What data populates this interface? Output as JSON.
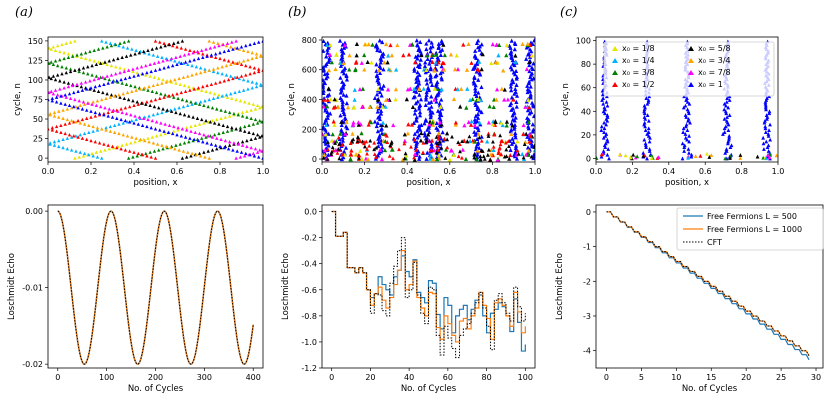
{
  "panel_labels": [
    "(a)",
    "(b)",
    "(c)"
  ],
  "legend_bottom_right": {
    "entries": [
      {
        "label": "Free Fermions L = 500",
        "color": "#1f77b4",
        "style": "solid"
      },
      {
        "label": "Free Fermions L = 1000",
        "color": "#ff7f0e",
        "style": "solid"
      },
      {
        "label": "CFT",
        "color": "#000000",
        "style": "dotted"
      }
    ]
  },
  "legend_top_right": {
    "entries": [
      {
        "label": "x₀ = 1/8",
        "color": "#e6e600"
      },
      {
        "label": "x₀ = 1/4",
        "color": "#00b3ff"
      },
      {
        "label": "x₀ = 3/8",
        "color": "#008000"
      },
      {
        "label": "x₀ = 1/2",
        "color": "#ff0000"
      },
      {
        "label": "x₀ = 5/8",
        "color": "#000000"
      },
      {
        "label": "x₀ = 3/4",
        "color": "#ffa500"
      },
      {
        "label": "x₀ = 7/8",
        "color": "#ff00ff"
      },
      {
        "label": "x₀ = 1",
        "color": "#0000ff"
      }
    ]
  },
  "chart_data": [
    {
      "id": "top-a",
      "type": "scatter",
      "title": "",
      "xlabel": "position, x",
      "ylabel": "cycle, n",
      "xlim": [
        0,
        1
      ],
      "ylim": [
        -5,
        155
      ],
      "xticks": [
        "0.0",
        "0.2",
        "0.4",
        "0.6",
        "0.8",
        "1.0"
      ],
      "xtick_values": [
        0,
        0.2,
        0.4,
        0.6,
        0.8,
        1.0
      ],
      "yticks": [
        "0",
        "25",
        "50",
        "75",
        "100",
        "125",
        "150"
      ],
      "ytick_values": [
        0,
        25,
        50,
        75,
        100,
        125,
        150
      ],
      "series_colors": [
        "#e6e600",
        "#00b3ff",
        "#008000",
        "#ff0000",
        "#000000",
        "#ffa500",
        "#ff00ff",
        "#0000ff"
      ],
      "model": "zigzag trajectories: x(n) reflects between 0 and 1 with slope ~1/75 per cycle, 8 start positions x0 = k/8, n = 0..150"
    },
    {
      "id": "top-b",
      "type": "scatter",
      "title": "",
      "xlabel": "position, x",
      "ylabel": "cycle, n",
      "xlim": [
        0,
        1
      ],
      "ylim": [
        -20,
        820
      ],
      "xticks": [
        "0.0",
        "0.2",
        "0.4",
        "0.6",
        "0.8",
        "1.0"
      ],
      "xtick_values": [
        0,
        0.2,
        0.4,
        0.6,
        0.8,
        1.0
      ],
      "yticks": [
        "0",
        "200",
        "400",
        "600",
        "800"
      ],
      "ytick_values": [
        0,
        200,
        400,
        600,
        800
      ],
      "clusters_x": [
        0.02,
        0.1,
        0.27,
        0.45,
        0.5,
        0.55,
        0.73,
        0.9,
        0.98
      ],
      "row_levels_n": [
        0,
        30,
        60,
        120,
        170,
        230,
        250,
        350,
        400,
        470,
        600,
        650,
        700,
        770
      ],
      "series_colors": [
        "#e6e600",
        "#00b3ff",
        "#008000",
        "#ff0000",
        "#000000",
        "#ffa500",
        "#ff00ff",
        "#0000ff"
      ]
    },
    {
      "id": "top-c",
      "type": "scatter",
      "title": "",
      "xlabel": "position, x",
      "ylabel": "cycle, n",
      "xlim": [
        0,
        1
      ],
      "ylim": [
        -3,
        103
      ],
      "xticks": [
        "0.0",
        "0.2",
        "0.4",
        "0.6",
        "0.8",
        "1.0"
      ],
      "xtick_values": [
        0,
        0.2,
        0.4,
        0.6,
        0.8,
        1.0
      ],
      "yticks": [
        "0",
        "20",
        "40",
        "60",
        "80",
        "100"
      ],
      "ytick_values": [
        0,
        20,
        40,
        60,
        80,
        100
      ],
      "spikes_x": [
        0.05,
        0.28,
        0.5,
        0.72,
        0.94
      ],
      "spike_heights_n": [
        100,
        100,
        100,
        100,
        100
      ],
      "series_colors": [
        "#e6e600",
        "#00b3ff",
        "#008000",
        "#ff0000",
        "#000000",
        "#ffa500",
        "#ff00ff",
        "#0000ff"
      ]
    },
    {
      "id": "bottom-a",
      "type": "line",
      "title": "",
      "xlabel": "No. of Cycles",
      "ylabel": "Loschmidt Echo",
      "xlim": [
        -20,
        420
      ],
      "ylim": [
        -0.0205,
        0.0008
      ],
      "xticks": [
        "0",
        "100",
        "200",
        "300",
        "400"
      ],
      "xtick_values": [
        0,
        100,
        200,
        300,
        400
      ],
      "yticks": [
        "0.00",
        "-0.01",
        "-0.02"
      ],
      "ytick_values": [
        0,
        -0.01,
        -0.02
      ],
      "model": "y = -0.01*(1 - cos(2*pi*n/109)), n = 0..400",
      "period_cycles": 109,
      "amplitude": 0.02,
      "series": [
        {
          "name": "Free Fermions L = 500",
          "color": "#1f77b4"
        },
        {
          "name": "Free Fermions L = 1000",
          "color": "#ff7f0e"
        },
        {
          "name": "CFT",
          "color": "#000000",
          "style": "dotted"
        }
      ]
    },
    {
      "id": "bottom-b",
      "type": "line",
      "title": "",
      "xlabel": "No. of Cycles",
      "ylabel": "Loschmidt Echo",
      "xlim": [
        -5,
        105
      ],
      "ylim": [
        -1.2,
        0.05
      ],
      "xticks": [
        "0",
        "20",
        "40",
        "60",
        "80",
        "100"
      ],
      "xtick_values": [
        0,
        20,
        40,
        60,
        80,
        100
      ],
      "yticks": [
        "0.0",
        "-0.2",
        "-0.4",
        "-0.6",
        "-0.8",
        "-1.0",
        "-1.2"
      ],
      "ytick_values": [
        0,
        -0.2,
        -0.4,
        -0.6,
        -0.8,
        -1.0,
        -1.2
      ],
      "x": [
        0,
        2,
        4,
        6,
        8,
        10,
        12,
        14,
        16,
        18,
        20,
        22,
        24,
        26,
        28,
        30,
        32,
        34,
        36,
        38,
        40,
        42,
        44,
        46,
        48,
        50,
        52,
        54,
        56,
        58,
        60,
        62,
        64,
        66,
        68,
        70,
        72,
        74,
        76,
        78,
        80,
        82,
        84,
        86,
        88,
        90,
        92,
        94,
        96,
        98,
        100
      ],
      "series": [
        {
          "name": "Free Fermions L = 500",
          "color": "#1f77b4",
          "values": [
            0,
            -0.19,
            -0.19,
            -0.16,
            -0.43,
            -0.43,
            -0.47,
            -0.43,
            -0.47,
            -0.6,
            -0.66,
            -0.63,
            -0.5,
            -0.56,
            -0.6,
            -0.64,
            -0.5,
            -0.45,
            -0.34,
            -0.46,
            -0.5,
            -0.37,
            -0.62,
            -0.66,
            -0.7,
            -0.53,
            -0.55,
            -0.79,
            -0.9,
            -0.66,
            -0.72,
            -0.93,
            -0.8,
            -0.75,
            -0.72,
            -0.83,
            -0.75,
            -0.68,
            -0.64,
            -0.8,
            -0.93,
            -0.78,
            -0.75,
            -0.7,
            -0.73,
            -0.8,
            -0.92,
            -0.67,
            -0.85,
            -1.07,
            -1.02
          ]
        },
        {
          "name": "Free Fermions L = 1000",
          "color": "#ff7f0e",
          "values": [
            0,
            -0.19,
            -0.19,
            -0.16,
            -0.43,
            -0.43,
            -0.47,
            -0.43,
            -0.47,
            -0.6,
            -0.72,
            -0.63,
            -0.58,
            -0.68,
            -0.74,
            -0.66,
            -0.56,
            -0.45,
            -0.3,
            -0.6,
            -0.56,
            -0.38,
            -0.66,
            -0.74,
            -0.8,
            -0.62,
            -0.63,
            -0.89,
            -0.98,
            -0.8,
            -0.86,
            -0.95,
            -1.0,
            -0.84,
            -0.82,
            -0.9,
            -0.8,
            -0.74,
            -0.62,
            -0.72,
            -0.82,
            -0.98,
            -0.7,
            -0.67,
            -0.72,
            -0.8,
            -0.88,
            -0.62,
            -0.77,
            -0.93,
            -0.88
          ]
        },
        {
          "name": "CFT",
          "color": "#000000",
          "style": "dotted",
          "values": [
            0,
            -0.19,
            -0.19,
            -0.16,
            -0.43,
            -0.43,
            -0.47,
            -0.43,
            -0.47,
            -0.6,
            -0.78,
            -0.63,
            -0.64,
            -0.76,
            -0.8,
            -0.55,
            -0.42,
            -0.3,
            -0.2,
            -0.66,
            -0.6,
            -0.39,
            -0.64,
            -0.78,
            -0.86,
            -0.58,
            -0.6,
            -0.95,
            -1.1,
            -0.88,
            -0.97,
            -1.05,
            -1.12,
            -0.95,
            -0.9,
            -0.86,
            -0.78,
            -0.7,
            -0.62,
            -0.74,
            -0.88,
            -1.06,
            -0.68,
            -0.63,
            -0.7,
            -0.78,
            -0.84,
            -0.58,
            -0.73,
            -0.84,
            -0.78
          ]
        }
      ]
    },
    {
      "id": "bottom-c",
      "type": "line",
      "title": "",
      "xlabel": "No. of Cycles",
      "ylabel": "Loschmidt Echo",
      "xlim": [
        -1.5,
        31
      ],
      "ylim": [
        -4.5,
        0.2
      ],
      "xticks": [
        "0",
        "5",
        "10",
        "15",
        "20",
        "25",
        "30"
      ],
      "xtick_values": [
        0,
        5,
        10,
        15,
        20,
        25,
        30
      ],
      "yticks": [
        "0",
        "-1",
        "-2",
        "-3",
        "-4"
      ],
      "ytick_values": [
        0,
        -1,
        -2,
        -3,
        -4
      ],
      "model": "staircase: y drops ~0.145 per cycle, plateaus every 2 cycles, reaching about -4.25 at n = 29",
      "series": [
        {
          "name": "Free Fermions L = 500",
          "color": "#1f77b4",
          "slope_per_cycle": -0.147
        },
        {
          "name": "Free Fermions L = 1000",
          "color": "#ff7f0e",
          "slope_per_cycle": -0.143
        },
        {
          "name": "CFT",
          "color": "#000000",
          "style": "dotted",
          "slope_per_cycle": -0.143
        }
      ]
    }
  ]
}
